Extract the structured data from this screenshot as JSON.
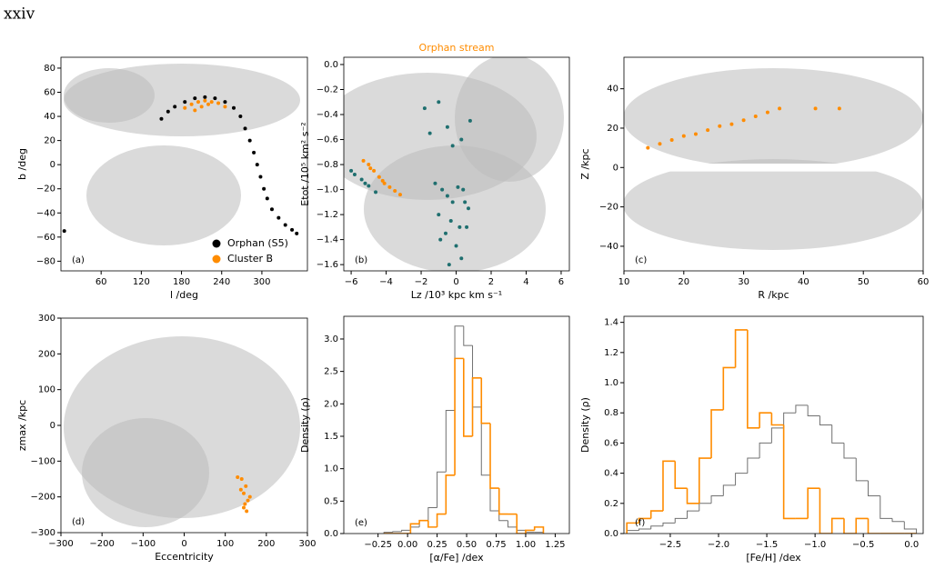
{
  "page_label": "xxiv",
  "chart_data": [
    {
      "type": "scatter",
      "panel_label": "(a)",
      "x_label": "l /deg",
      "y_label": "b /deg",
      "xlim": [
        0,
        368
      ],
      "ylim": [
        -88,
        89
      ],
      "xticks": [
        60,
        120,
        180,
        240,
        300
      ],
      "yticks": [
        {
          "value": -80,
          "label": "−80"
        },
        {
          "value": -60,
          "label": "−60"
        },
        {
          "value": -40,
          "label": "−40"
        },
        {
          "value": -20,
          "label": "−20"
        },
        0,
        20,
        40,
        60,
        80
      ],
      "legend": "lower right",
      "series": [
        {
          "name": "Orphan (S5)",
          "color": "#000000",
          "x": [
            5,
            150,
            160,
            170,
            185,
            200,
            215,
            230,
            245,
            258,
            268,
            275,
            282,
            288,
            293,
            298,
            303,
            308,
            315,
            325,
            335,
            345,
            352
          ],
          "y": [
            -55,
            38,
            44,
            48,
            52,
            55,
            56,
            55,
            52,
            47,
            40,
            30,
            20,
            10,
            0,
            -10,
            -20,
            -28,
            -37,
            -44,
            -50,
            -54,
            -57
          ]
        },
        {
          "name": "Cluster B",
          "color": "#ff8c00",
          "x": [
            185,
            195,
            200,
            205,
            210,
            215,
            220,
            225,
            235,
            245
          ],
          "y": [
            47,
            50,
            45,
            52,
            48,
            53,
            50,
            52,
            51,
            48
          ]
        }
      ]
    },
    {
      "type": "scatter",
      "title": "Orphan stream",
      "title_color": "#ff8c00",
      "panel_label": "(b)",
      "x_label": "Lz /10³ kpc km s⁻¹",
      "y_label": "Etot /10⁵ km² s⁻²",
      "xlim": [
        -6.42,
        6.47
      ],
      "ylim": [
        -1.65,
        0.058
      ],
      "xticks": [
        {
          "value": -6,
          "label": "−6"
        },
        {
          "value": -4,
          "label": "−4"
        },
        {
          "value": -2,
          "label": "−2"
        },
        0,
        2,
        4,
        6
      ],
      "yticks": [
        {
          "value": -1.6,
          "label": "−1.6"
        },
        {
          "value": -1.4,
          "label": "−1.4"
        },
        {
          "value": -1.2,
          "label": "−1.2"
        },
        {
          "value": -1.0,
          "label": "−1.0"
        },
        {
          "value": -0.8,
          "label": "−0.8"
        },
        {
          "value": -0.6,
          "label": "−0.6"
        },
        {
          "value": -0.4,
          "label": "−0.4"
        },
        {
          "value": -0.2,
          "label": "−0.2"
        },
        {
          "value": 0,
          "label": "0.0"
        }
      ],
      "series": [
        {
          "color": "#1f6f6f",
          "x": [
            -1.2,
            -0.8,
            -0.5,
            -0.2,
            0.1,
            0.4,
            0.7,
            -1.0,
            -0.3,
            0.2,
            0.5,
            -0.6,
            0.0,
            0.3,
            -0.9,
            -0.4,
            0.6,
            -5.8,
            -5.4,
            -5.0,
            -4.6,
            -6.0,
            -5.2,
            -1.5,
            -0.5,
            0.3,
            -1.8,
            0.8,
            -1.0,
            -0.2
          ],
          "y": [
            -0.95,
            -1.0,
            -1.05,
            -1.1,
            -0.98,
            -1.0,
            -1.15,
            -1.2,
            -1.25,
            -1.3,
            -1.1,
            -1.35,
            -1.45,
            -1.55,
            -1.4,
            -1.6,
            -1.3,
            -0.88,
            -0.92,
            -0.97,
            -1.02,
            -0.85,
            -0.95,
            -0.55,
            -0.5,
            -0.6,
            -0.35,
            -0.45,
            -0.3,
            -0.65
          ]
        },
        {
          "color": "#ff8c00",
          "x": [
            -5.3,
            -5.0,
            -4.9,
            -4.7,
            -4.4,
            -4.2,
            -4.1,
            -3.8,
            -3.5,
            -3.2
          ],
          "y": [
            -0.77,
            -0.8,
            -0.83,
            -0.85,
            -0.9,
            -0.93,
            -0.95,
            -0.98,
            -1.01,
            -1.04
          ]
        }
      ]
    },
    {
      "type": "scatter",
      "panel_label": "(c)",
      "x_label": "R /kpc",
      "y_label": "Z /kpc",
      "xlim": [
        10,
        60
      ],
      "ylim": [
        -52.5,
        56
      ],
      "xticks": [
        10,
        20,
        30,
        40,
        50,
        60
      ],
      "yticks": [
        {
          "value": -40,
          "label": "−40"
        },
        {
          "value": -20,
          "label": "−20"
        },
        0,
        20,
        40
      ],
      "series": [
        {
          "color": "#ff8c00",
          "x": [
            14,
            16,
            18,
            20,
            22,
            24,
            26,
            28,
            30,
            32,
            34,
            36,
            42,
            46
          ],
          "y": [
            10,
            12,
            14,
            16,
            17,
            19,
            21,
            22,
            24,
            26,
            28,
            30,
            30,
            30
          ]
        }
      ]
    },
    {
      "type": "scatter",
      "panel_label": "(d)",
      "x_label": "Eccentricity",
      "y_label": "zmax /kpc",
      "xlim": [
        -300,
        300
      ],
      "ylim": [
        -300,
        300
      ],
      "xticks": [
        {
          "value": -300,
          "label": "−300"
        },
        {
          "value": -200,
          "label": "−200"
        },
        {
          "value": -100,
          "label": "−100"
        },
        0,
        100,
        200,
        300
      ],
      "yticks": [
        {
          "value": -300,
          "label": "−300"
        },
        {
          "value": -200,
          "label": "−200"
        },
        {
          "value": -100,
          "label": "−100"
        },
        0,
        100,
        200,
        300
      ],
      "series": [
        {
          "color": "#ff8c00",
          "x": [
            130,
            138,
            140,
            145,
            145,
            148,
            150,
            152,
            155,
            160
          ],
          "y": [
            -145,
            -180,
            -150,
            -190,
            -230,
            -220,
            -170,
            -240,
            -210,
            -200
          ]
        }
      ]
    },
    {
      "type": "histogram",
      "panel_label": "(e)",
      "x_label": "[α/Fe] /dex",
      "y_label": "Density (ρ)",
      "xlim": [
        -0.54,
        1.37
      ],
      "ylim": [
        0,
        3.35
      ],
      "xticks": [
        {
          "value": -0.25,
          "label": "−0.25"
        },
        {
          "value": 0,
          "label": "0.00"
        },
        {
          "value": 0.25,
          "label": "0.25"
        },
        {
          "value": 0.5,
          "label": "0.50"
        },
        {
          "value": 0.75,
          "label": "0.75"
        },
        {
          "value": 1,
          "label": "1.00"
        },
        {
          "value": 1.25,
          "label": "1.25"
        }
      ],
      "yticks": [
        {
          "value": 0,
          "label": "0.0"
        },
        0.5,
        {
          "value": 1,
          "label": "1.0"
        },
        1.5,
        {
          "value": 2,
          "label": "2.0"
        },
        2.5,
        {
          "value": 3,
          "label": "3.0"
        }
      ],
      "series": [
        {
          "color": "#707070",
          "bins": [
            -0.2,
            -0.125,
            -0.05,
            0.025,
            0.1,
            0.175,
            0.25,
            0.325,
            0.4,
            0.475,
            0.55,
            0.625,
            0.7,
            0.775,
            0.85,
            0.925,
            1.0,
            1.075,
            1.15
          ],
          "values": [
            0.02,
            0.03,
            0.05,
            0.1,
            0.2,
            0.4,
            0.95,
            1.9,
            3.2,
            2.9,
            1.95,
            0.9,
            0.35,
            0.2,
            0.1,
            0.05,
            0.02,
            0.02
          ]
        },
        {
          "color": "#ff8c00",
          "bins": [
            -0.2,
            -0.125,
            -0.05,
            0.025,
            0.1,
            0.175,
            0.25,
            0.325,
            0.4,
            0.475,
            0.55,
            0.625,
            0.7,
            0.775,
            0.85,
            0.925,
            1.0,
            1.075,
            1.15
          ],
          "values": [
            0,
            0,
            0,
            0.15,
            0.2,
            0.1,
            0.3,
            0.9,
            2.7,
            1.5,
            2.4,
            1.7,
            0.7,
            0.3,
            0.3,
            0,
            0.05,
            0.1
          ]
        }
      ]
    },
    {
      "type": "histogram",
      "panel_label": "(f)",
      "x_label": "[Fe/H] /dex",
      "y_label": "Density (ρ)",
      "xlim": [
        -2.98,
        0.12
      ],
      "ylim": [
        0,
        1.44
      ],
      "xticks": [
        {
          "value": -2.5,
          "label": "−2.5"
        },
        {
          "value": -2,
          "label": "−2.0"
        },
        {
          "value": -1.5,
          "label": "−1.5"
        },
        {
          "value": -1,
          "label": "−1.0"
        },
        {
          "value": -0.5,
          "label": "−0.5"
        },
        {
          "value": 0,
          "label": "0.0"
        }
      ],
      "yticks": [
        {
          "value": 0,
          "label": "0.0"
        },
        0.2,
        0.4,
        0.6,
        0.8,
        {
          "value": 1,
          "label": "1.0"
        },
        1.2,
        1.4
      ],
      "series": [
        {
          "color": "#707070",
          "bins": [
            -2.95,
            -2.825,
            -2.7,
            -2.575,
            -2.45,
            -2.325,
            -2.2,
            -2.075,
            -1.95,
            -1.825,
            -1.7,
            -1.575,
            -1.45,
            -1.325,
            -1.2,
            -1.075,
            -0.95,
            -0.825,
            -0.7,
            -0.575,
            -0.45,
            -0.325,
            -0.2,
            -0.075,
            0.05
          ],
          "values": [
            0.02,
            0.03,
            0.05,
            0.07,
            0.1,
            0.15,
            0.2,
            0.25,
            0.32,
            0.4,
            0.5,
            0.6,
            0.7,
            0.8,
            0.85,
            0.78,
            0.72,
            0.6,
            0.5,
            0.35,
            0.25,
            0.1,
            0.08,
            0.03
          ]
        },
        {
          "color": "#ff8c00",
          "bins": [
            -2.95,
            -2.825,
            -2.7,
            -2.575,
            -2.45,
            -2.325,
            -2.2,
            -2.075,
            -1.95,
            -1.825,
            -1.7,
            -1.575,
            -1.45,
            -1.325,
            -1.2,
            -1.075,
            -0.95,
            -0.825,
            -0.7,
            -0.575,
            -0.45,
            -0.325,
            -0.2,
            -0.075,
            0.05
          ],
          "values": [
            0.07,
            0.1,
            0.15,
            0.48,
            0.3,
            0.2,
            0.5,
            0.82,
            1.1,
            1.35,
            0.7,
            0.8,
            0.72,
            0.1,
            0.1,
            0.3,
            0,
            0.1,
            0,
            0.1,
            0,
            0,
            0,
            0
          ]
        }
      ]
    }
  ]
}
